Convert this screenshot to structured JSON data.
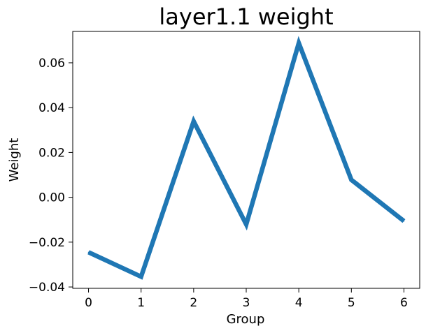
{
  "chart_data": {
    "type": "line",
    "title": "layer1.1 weight",
    "xlabel": "Group",
    "ylabel": "Weight",
    "x": [
      0,
      1,
      2,
      3,
      4,
      5,
      6
    ],
    "series": [
      {
        "values": [
          -0.0245,
          -0.0354,
          0.0339,
          -0.0121,
          0.0688,
          0.0078,
          -0.0106
        ],
        "color": "#1f77b4"
      }
    ],
    "xticks": [
      0,
      1,
      2,
      3,
      4,
      5,
      6
    ],
    "xtick_labels": [
      "0",
      "1",
      "2",
      "3",
      "4",
      "5",
      "6"
    ],
    "yticks": [
      -0.04,
      -0.02,
      0.0,
      0.02,
      0.04,
      0.06
    ],
    "ytick_labels": [
      "−0.04",
      "−0.02",
      "0.00",
      "0.02",
      "0.04",
      "0.06"
    ],
    "xlim": [
      -0.3,
      6.3
    ],
    "ylim": [
      -0.0406,
      0.074
    ],
    "grid": false,
    "legend": false
  }
}
